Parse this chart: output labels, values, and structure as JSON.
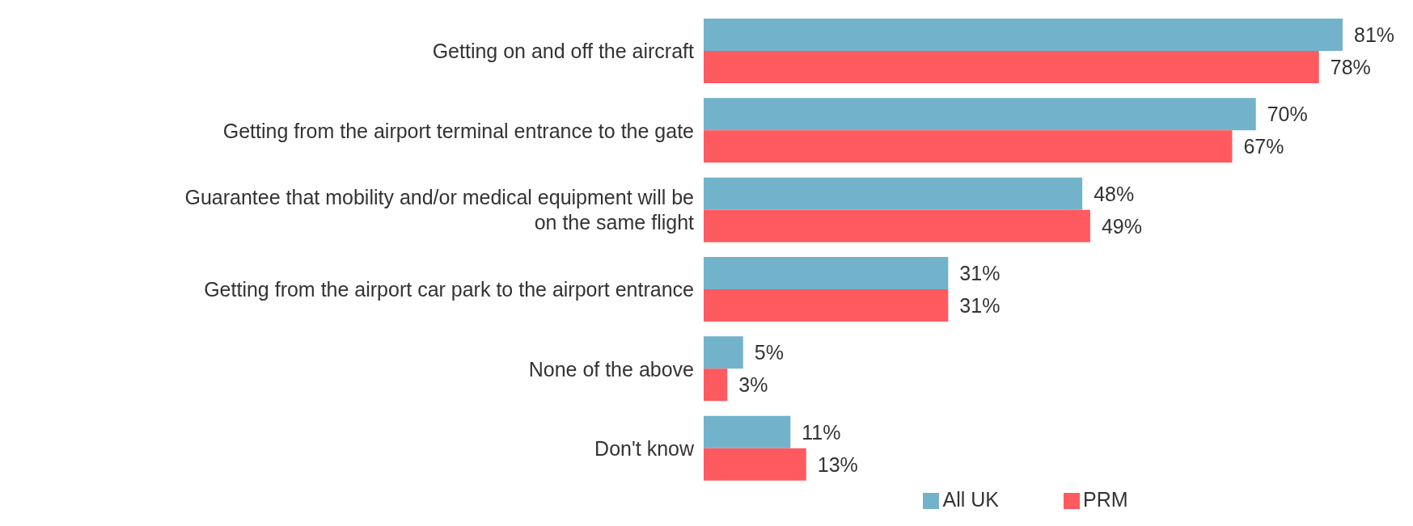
{
  "chart_data": {
    "type": "bar",
    "orientation": "horizontal",
    "categories": [
      "Getting on and off the aircraft",
      "Getting from the airport terminal entrance to the gate",
      "Guarantee that mobility and/or medical equipment will be on the same flight",
      "Getting from the airport car park to the airport entrance",
      "None of the above",
      "Don't know"
    ],
    "series": [
      {
        "name": "All UK",
        "color": "#72b3cb",
        "values": [
          81,
          70,
          48,
          31,
          5,
          11
        ],
        "value_labels": [
          "81%",
          "70%",
          "48%",
          "31%",
          "5%",
          "11%"
        ]
      },
      {
        "name": "PRM",
        "color": "#ff5a5f",
        "values": [
          78,
          67,
          49,
          31,
          3,
          13
        ],
        "value_labels": [
          "78%",
          "67%",
          "49%",
          "31%",
          "3%",
          "13%"
        ]
      }
    ],
    "legend": "bottom",
    "tick_labels": "y"
  }
}
